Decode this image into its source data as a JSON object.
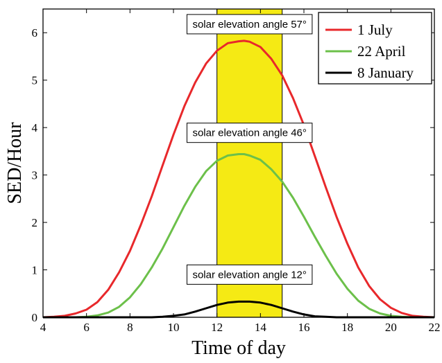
{
  "chart_data": {
    "type": "line",
    "xlabel": "Time of day",
    "ylabel": "SED/Hour",
    "xlim": [
      4,
      22
    ],
    "ylim": [
      0,
      6.5
    ],
    "xticks": [
      "4",
      "6",
      "8",
      "10",
      "12",
      "14",
      "16",
      "18",
      "20",
      "22"
    ],
    "yticks": [
      "0",
      "1",
      "2",
      "3",
      "4",
      "5",
      "6"
    ],
    "highlight_band": {
      "x_from": 12,
      "x_to": 15,
      "color": "#f5ea14"
    },
    "series": [
      {
        "name": "1 July",
        "color": "#e8282b",
        "x": [
          4,
          4.5,
          5,
          5.5,
          6,
          6.5,
          7,
          7.5,
          8,
          8.5,
          9,
          9.5,
          10,
          10.5,
          11,
          11.5,
          12,
          12.5,
          13,
          13.25,
          13.5,
          14,
          14.5,
          15,
          15.5,
          16,
          16.5,
          17,
          17.5,
          18,
          18.5,
          19,
          19.5,
          20,
          20.5,
          21,
          21.5,
          22
        ],
        "y": [
          0,
          0.01,
          0.03,
          0.08,
          0.16,
          0.32,
          0.58,
          0.95,
          1.4,
          1.95,
          2.55,
          3.2,
          3.85,
          4.45,
          4.95,
          5.35,
          5.62,
          5.78,
          5.82,
          5.83,
          5.81,
          5.7,
          5.45,
          5.1,
          4.62,
          4.05,
          3.4,
          2.75,
          2.12,
          1.55,
          1.05,
          0.66,
          0.38,
          0.2,
          0.09,
          0.03,
          0.01,
          0
        ]
      },
      {
        "name": "22 April",
        "color": "#6cc04a",
        "x": [
          5.5,
          6,
          6.5,
          7,
          7.5,
          8,
          8.5,
          9,
          9.5,
          10,
          10.5,
          11,
          11.5,
          12,
          12.5,
          13,
          13.25,
          13.5,
          14,
          14.5,
          15,
          15.5,
          16,
          16.5,
          17,
          17.5,
          18,
          18.5,
          19,
          19.5,
          20,
          20.5,
          21
        ],
        "y": [
          0,
          0.01,
          0.04,
          0.1,
          0.22,
          0.42,
          0.7,
          1.05,
          1.45,
          1.9,
          2.35,
          2.75,
          3.08,
          3.3,
          3.41,
          3.44,
          3.44,
          3.41,
          3.32,
          3.12,
          2.86,
          2.52,
          2.12,
          1.7,
          1.3,
          0.92,
          0.6,
          0.35,
          0.18,
          0.08,
          0.03,
          0.01,
          0
        ]
      },
      {
        "name": "8 January",
        "color": "#000000",
        "x": [
          4,
          9,
          9.5,
          10,
          10.5,
          11,
          11.5,
          12,
          12.5,
          13,
          13.5,
          14,
          14.5,
          15,
          15.5,
          16,
          16.5,
          17,
          17.5,
          22
        ],
        "y": [
          0,
          0,
          0.01,
          0.03,
          0.06,
          0.12,
          0.19,
          0.26,
          0.31,
          0.33,
          0.33,
          0.31,
          0.26,
          0.19,
          0.12,
          0.06,
          0.02,
          0.01,
          0,
          0
        ]
      }
    ],
    "annotations": [
      {
        "text": "solar elevation angle 57°",
        "x": 13.5,
        "y": 6.18
      },
      {
        "text": "solar elevation angle 46°",
        "x": 13.5,
        "y": 3.89
      },
      {
        "text": "solar elevation angle 12°",
        "x": 13.5,
        "y": 0.9
      }
    ],
    "legend": {
      "placement": "top-right",
      "entries": [
        "1 July",
        "22 April",
        "8 January"
      ]
    },
    "grid": false
  }
}
